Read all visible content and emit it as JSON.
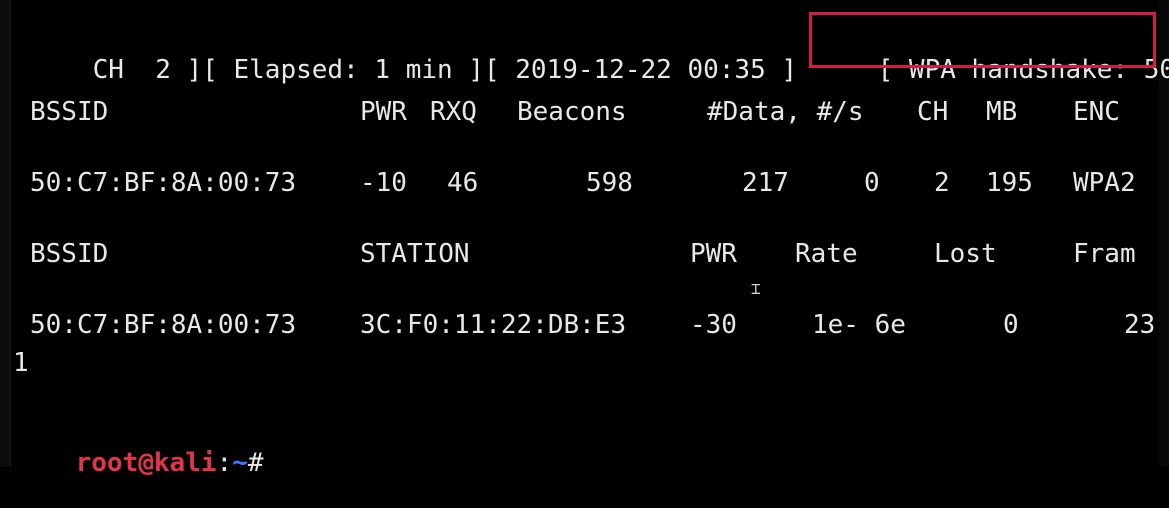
{
  "status_line": {
    "channel": "CH  2 ][ Elapsed: 1 min ][ 2019-12-22 00:35 ]",
    "handshake": "[ WPA handshake: 50"
  },
  "ap_table": {
    "headers": {
      "bssid": "BSSID",
      "pwr": "PWR",
      "rxq": "RXQ",
      "beacons": "Beacons",
      "data": "#Data, #/s",
      "ch": "CH",
      "mb": "MB",
      "enc": "ENC"
    },
    "row": {
      "bssid": "50:C7:BF:8A:00:73",
      "pwr": "-10",
      "rxq": "46",
      "beacons": "598",
      "data": "217",
      "per_s": "0",
      "ch": "2",
      "mb": "195",
      "enc": "WPA2"
    }
  },
  "station_table": {
    "headers": {
      "bssid": "BSSID",
      "station": "STATION",
      "pwr": "PWR",
      "rate": "Rate",
      "lost": "Lost",
      "frames": "Fram"
    },
    "row": {
      "bssid": "50:C7:BF:8A:00:73",
      "station": "3C:F0:11:22:DB:E3",
      "pwr": "-30",
      "rate": "1e- 6e",
      "lost": "0",
      "frames": "23"
    },
    "wrapped": "1"
  },
  "prompt": {
    "user_host": "root@kali",
    "sep": ":",
    "path": "~",
    "symbol": "#"
  },
  "colors": {
    "background": "#000000",
    "text": "#e8e8e8",
    "highlight_border": "#d21c4e",
    "prompt_user": "#e5344a",
    "prompt_path": "#3b78ff"
  }
}
